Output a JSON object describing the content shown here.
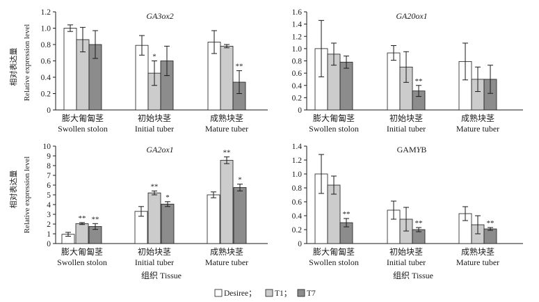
{
  "figure": {
    "y_axis_label_zh": "相对表达量",
    "y_axis_label_en": "Relative expression level",
    "x_axis_label": "组织 Tissue",
    "legend": [
      {
        "label": "Desiree；",
        "color": "#ffffff"
      },
      {
        "label": "T1；",
        "color": "#cccccc"
      },
      {
        "label": "T7",
        "color": "#8c8c8c"
      }
    ]
  },
  "chart_data": [
    {
      "type": "bar",
      "title": "GA3ox2",
      "title_parts": [
        {
          "text": "GA3ox2",
          "italic": true
        }
      ],
      "categories": [
        "Swollen  stolon",
        "Initial tuber",
        "Mature tuber"
      ],
      "categories_zh": [
        "膨大匍匐茎",
        "初始块茎",
        "成熟块茎"
      ],
      "ylim": [
        0,
        1.2
      ],
      "ytick_labels": [
        "0",
        "0.2",
        "0.4",
        "0.6",
        "0.8",
        "1.0",
        "1.2"
      ],
      "series": [
        {
          "name": "Desiree",
          "values": [
            1.0,
            0.79,
            0.83
          ],
          "errors": [
            0.04,
            0.12,
            0.14
          ],
          "sig": [
            "",
            "",
            ""
          ]
        },
        {
          "name": "T1",
          "values": [
            0.86,
            0.45,
            0.78
          ],
          "errors": [
            0.15,
            0.15,
            0.02
          ],
          "sig": [
            "",
            "*",
            ""
          ]
        },
        {
          "name": "T7",
          "values": [
            0.8,
            0.6,
            0.34
          ],
          "errors": [
            0.17,
            0.18,
            0.14
          ],
          "sig": [
            "",
            "",
            "**"
          ]
        }
      ]
    },
    {
      "type": "bar",
      "title": "GA20ox1",
      "title_parts": [
        {
          "text": "GA20ox1",
          "italic": true
        }
      ],
      "categories": [
        "Swollen  stolon",
        "Initial tuber",
        "Mature tuber"
      ],
      "categories_zh": [
        "膨大匍匐茎",
        "初始块茎",
        "成熟块茎"
      ],
      "ylim": [
        0,
        1.6
      ],
      "ytick_labels": [
        "0",
        "0.2",
        "0.4",
        "0.6",
        "0.8",
        "1.0",
        "1.2",
        "1.4",
        "1.6"
      ],
      "series": [
        {
          "name": "Desiree",
          "values": [
            1.0,
            0.93,
            0.79
          ],
          "errors": [
            0.46,
            0.12,
            0.3
          ],
          "sig": [
            "",
            "",
            ""
          ]
        },
        {
          "name": "T1",
          "values": [
            0.91,
            0.7,
            0.5
          ],
          "errors": [
            0.18,
            0.25,
            0.2
          ],
          "sig": [
            "",
            "",
            ""
          ]
        },
        {
          "name": "T7",
          "values": [
            0.78,
            0.31,
            0.5
          ],
          "errors": [
            0.1,
            0.09,
            0.23
          ],
          "sig": [
            "",
            "**",
            ""
          ]
        }
      ]
    },
    {
      "type": "bar",
      "title": "GA2ox1",
      "title_parts": [
        {
          "text": "GA2ox1",
          "italic": true
        }
      ],
      "categories": [
        "Swollen  stolon",
        "Initial tuber",
        "Mature tuber"
      ],
      "categories_zh": [
        "膨大匍匐茎",
        "初始块茎",
        "成熟块茎"
      ],
      "ylim": [
        0,
        10
      ],
      "ytick_labels": [
        "0",
        "1",
        "2",
        "3",
        "4",
        "5",
        "6",
        "7",
        "8",
        "9",
        "10"
      ],
      "series": [
        {
          "name": "Desiree",
          "values": [
            0.95,
            3.3,
            5.0
          ],
          "errors": [
            0.2,
            0.5,
            0.3
          ],
          "sig": [
            "",
            "",
            ""
          ]
        },
        {
          "name": "T1",
          "values": [
            2.05,
            5.2,
            8.55
          ],
          "errors": [
            0.1,
            0.2,
            0.35
          ],
          "sig": [
            "**",
            "**",
            "**"
          ]
        },
        {
          "name": "T7",
          "values": [
            1.75,
            4.05,
            5.75
          ],
          "errors": [
            0.3,
            0.25,
            0.35
          ],
          "sig": [
            "**",
            "*",
            "*"
          ]
        }
      ]
    },
    {
      "type": "bar",
      "title": "GAMYB",
      "title_parts": [
        {
          "text": "GAM",
          "italic": false
        },
        {
          "text": "Y",
          "italic": true
        },
        {
          "text": "B",
          "italic": false
        }
      ],
      "categories": [
        "Swollen  stolon",
        "Initial tuber",
        "Mature tuber"
      ],
      "categories_zh": [
        "膨大匍匐茎",
        "初始块茎",
        "成熟块茎"
      ],
      "ylim": [
        0,
        1.4
      ],
      "ytick_labels": [
        "0",
        "0.2",
        "0.4",
        "0.6",
        "0.8",
        "1.0",
        "1.2",
        "1.4"
      ],
      "series": [
        {
          "name": "Desiree",
          "values": [
            1.0,
            0.48,
            0.43
          ],
          "errors": [
            0.28,
            0.13,
            0.1
          ],
          "sig": [
            "",
            "",
            ""
          ]
        },
        {
          "name": "T1",
          "values": [
            0.84,
            0.35,
            0.27
          ],
          "errors": [
            0.13,
            0.17,
            0.13
          ],
          "sig": [
            "",
            "",
            ""
          ]
        },
        {
          "name": "T7",
          "values": [
            0.3,
            0.2,
            0.21
          ],
          "errors": [
            0.06,
            0.03,
            0.02
          ],
          "sig": [
            "**",
            "**",
            "**"
          ]
        }
      ]
    }
  ]
}
